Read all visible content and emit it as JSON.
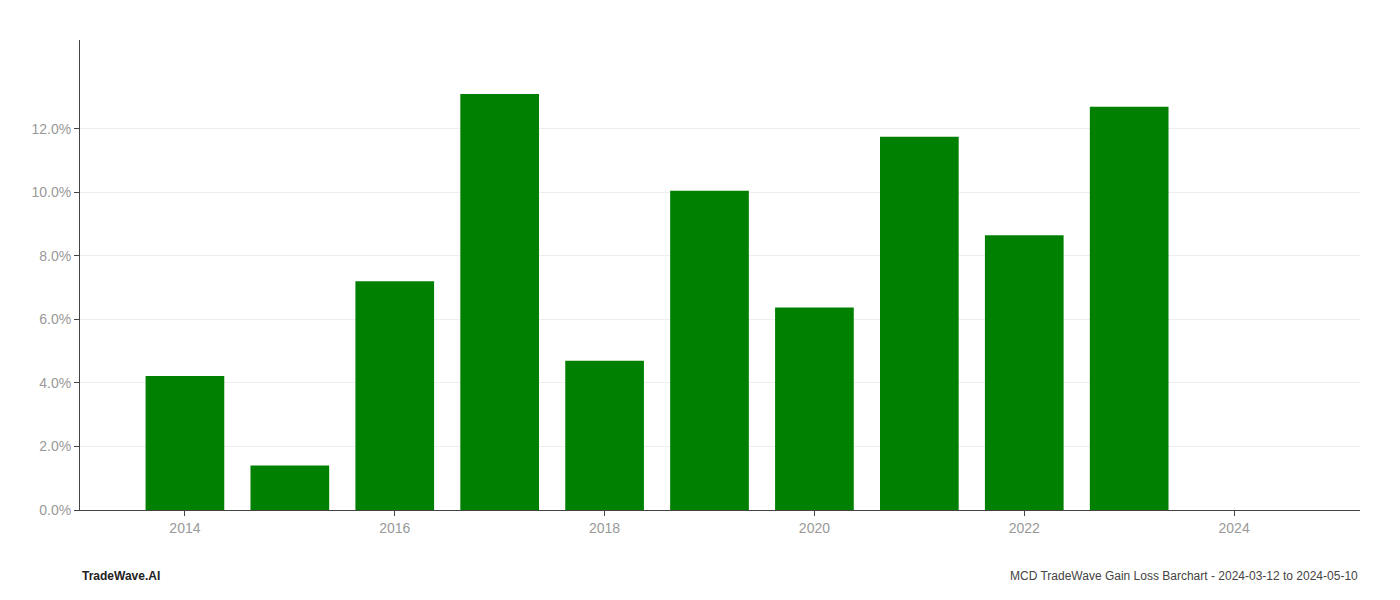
{
  "chart_data": {
    "type": "bar",
    "x": [
      2014,
      2015,
      2016,
      2017,
      2018,
      2019,
      2020,
      2021,
      2022,
      2023
    ],
    "values": [
      0.0422,
      0.014,
      0.072,
      0.131,
      0.047,
      0.1005,
      0.0638,
      0.1175,
      0.0865,
      0.127
    ],
    "color": "#008000",
    "xlim": [
      2013.0,
      2025.2
    ],
    "xticks": [
      2014,
      2016,
      2018,
      2020,
      2022,
      2024
    ],
    "ylim": [
      0,
      0.148
    ],
    "yticks": [
      {
        "value": 0.0,
        "label": "0.0%"
      },
      {
        "value": 0.02,
        "label": "2.0%"
      },
      {
        "value": 0.04,
        "label": "4.0%"
      },
      {
        "value": 0.06,
        "label": "6.0%"
      },
      {
        "value": 0.08,
        "label": "8.0%"
      },
      {
        "value": 0.1,
        "label": "10.0%"
      },
      {
        "value": 0.12,
        "label": "12.0%"
      }
    ],
    "grid": true,
    "annotations": [
      "TradeWave.AI",
      "MCD TradeWave Gain Loss Barchart - 2024-03-12 to 2024-05-10"
    ]
  }
}
